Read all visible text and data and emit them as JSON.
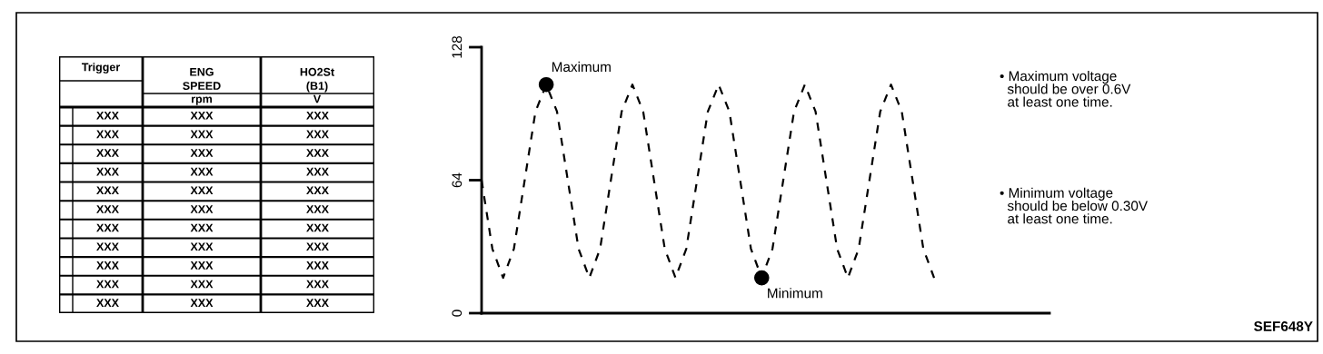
{
  "chart_data": [
    {
      "type": "other",
      "annotations": [
        "Trigger",
        "ENG\nSPEED",
        "HO2St\n(B1)",
        "rpm",
        "V",
        "XXX",
        "XXX",
        "XXX",
        "XXX",
        "XXX",
        "XXX",
        "XXX",
        "XXX",
        "XXX",
        "XXX",
        "XXX",
        "XXX",
        "XXX",
        "XXX",
        "XXX",
        "XXX",
        "XXX",
        "XXX",
        "XXX",
        "XXX",
        "XXX",
        "XXX",
        "XXX",
        "XXX",
        "XXX",
        "XXX",
        "XXX",
        "XXX",
        "XXX",
        "XXX",
        "XXX",
        "XXX",
        "XXX"
      ]
    },
    {
      "type": "line",
      "categories": [
        null,
        null,
        null,
        null,
        null,
        null,
        null,
        null,
        null,
        null,
        null,
        null,
        null,
        null,
        null,
        null,
        null,
        null,
        null,
        null,
        null,
        null,
        null,
        null,
        null,
        null,
        null,
        null,
        null,
        null,
        null,
        null,
        null,
        null,
        null,
        null,
        null,
        null,
        null,
        null,
        null,
        null,
        null
      ],
      "ylim": [
        0,
        128
      ],
      "yticks": [
        0,
        64,
        128
      ],
      "tick_labels": "y",
      "grid": false,
      "legend": false,
      "series": [
        {
          "color": "#000000",
          "line_style": "dashed",
          "marker": "none",
          "values": [
            64,
            31,
            17,
            31,
            64,
            97,
            110,
            97,
            64,
            31,
            17,
            31,
            64,
            97,
            110,
            97,
            64,
            31,
            17,
            31,
            64,
            97,
            110,
            97,
            64,
            31,
            17,
            31,
            64,
            97,
            110,
            97,
            64,
            31,
            17,
            31,
            64,
            97,
            110,
            97,
            64,
            31,
            17
          ]
        },
        {
          "type": "scatter",
          "name": "Maximum",
          "color": "#000000",
          "marker": "circle",
          "values": [
            null,
            null,
            null,
            null,
            null,
            null,
            110,
            null,
            null,
            null,
            null,
            null,
            null,
            null,
            null,
            null,
            null,
            null,
            null,
            null,
            null,
            null,
            null,
            null,
            null,
            null,
            null,
            null,
            null,
            null,
            null,
            null,
            null,
            null,
            null,
            null,
            null,
            null,
            null,
            null,
            null,
            null,
            null
          ]
        },
        {
          "type": "scatter",
          "name": "Minimum",
          "color": "#000000",
          "marker": "circle",
          "values": [
            null,
            null,
            null,
            null,
            null,
            null,
            null,
            null,
            null,
            null,
            null,
            null,
            null,
            null,
            null,
            null,
            null,
            null,
            null,
            null,
            null,
            null,
            null,
            null,
            null,
            null,
            17,
            null,
            null,
            null,
            null,
            null,
            null,
            null,
            null,
            null,
            null,
            null,
            null,
            null,
            null,
            null,
            null
          ]
        }
      ],
      "annotations": [
        "• Maximum voltage\n  should be over 0.6V\n  at least one time.",
        "• Minimum voltage\n  should be below 0.30V\n  at least one time.",
        "SEF648Y"
      ]
    }
  ]
}
